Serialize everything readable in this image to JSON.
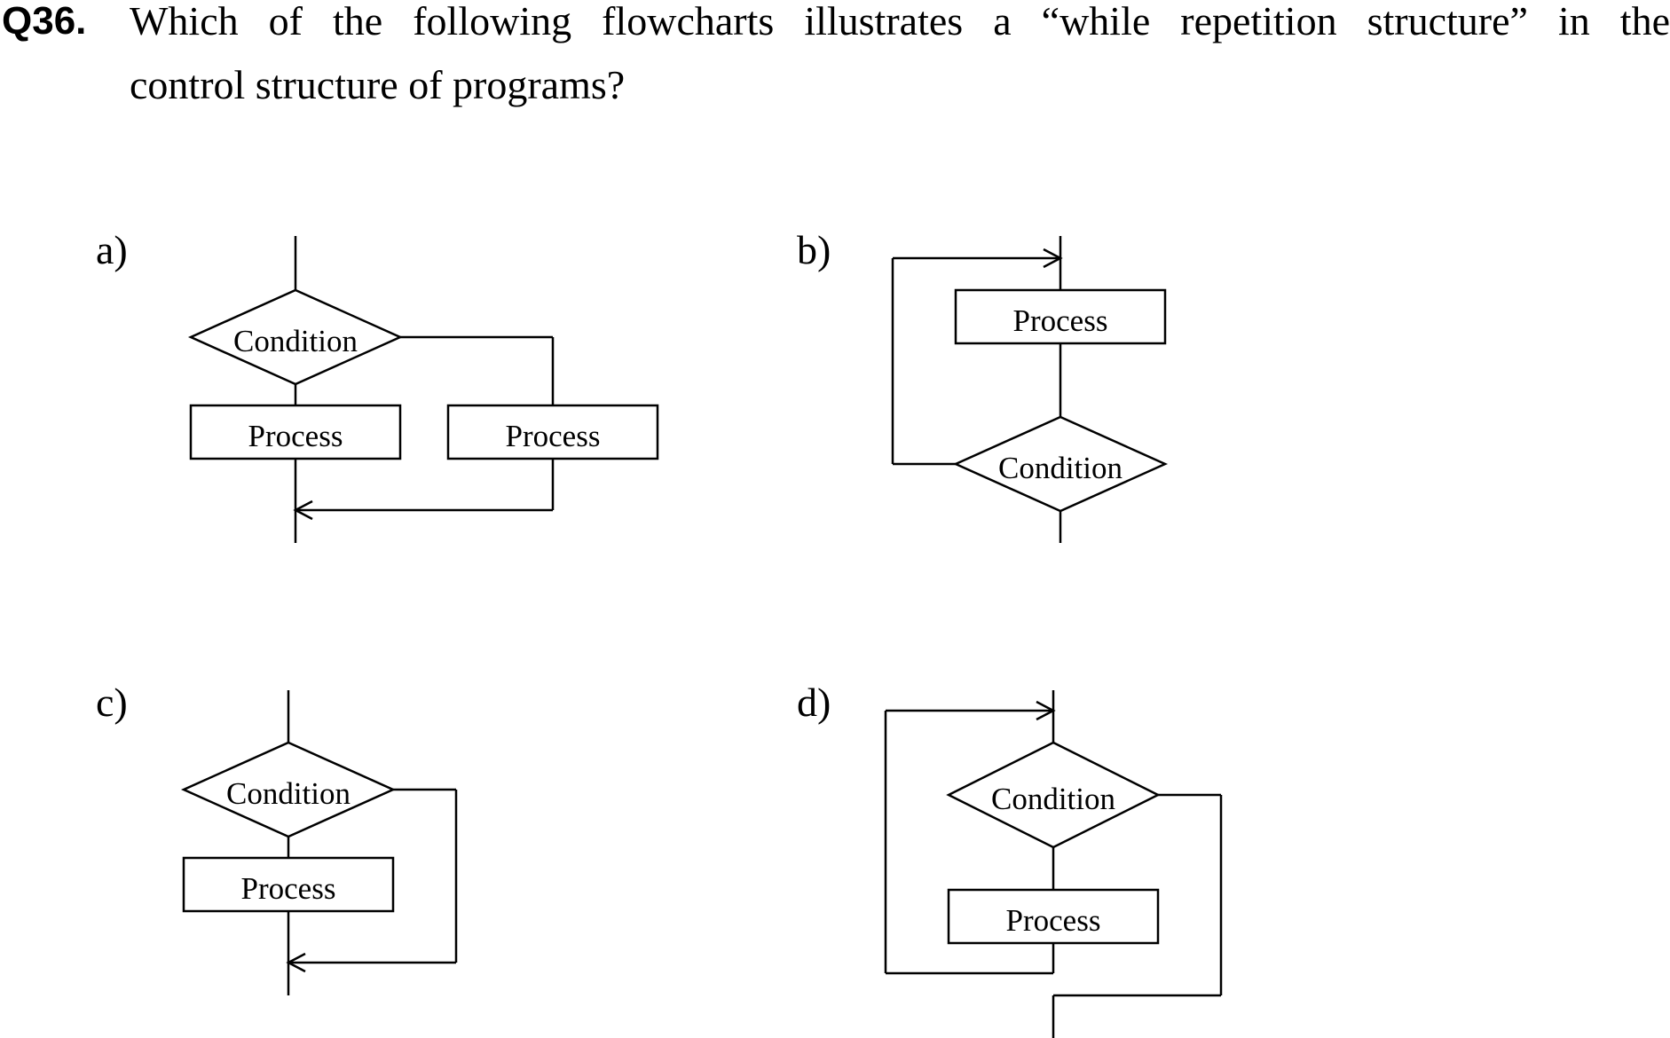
{
  "question": {
    "number": "Q36.",
    "line1": "Which of the following flowcharts illustrates a “while repetition structure” in the",
    "line2": "control structure of programs?"
  },
  "options": {
    "a": {
      "label": "a)",
      "condition": "Condition",
      "process_left": "Process",
      "process_right": "Process"
    },
    "b": {
      "label": "b)",
      "process": "Process",
      "condition": "Condition"
    },
    "c": {
      "label": "c)",
      "condition": "Condition",
      "process": "Process"
    },
    "d": {
      "label": "d)",
      "condition": "Condition",
      "process": "Process"
    }
  }
}
